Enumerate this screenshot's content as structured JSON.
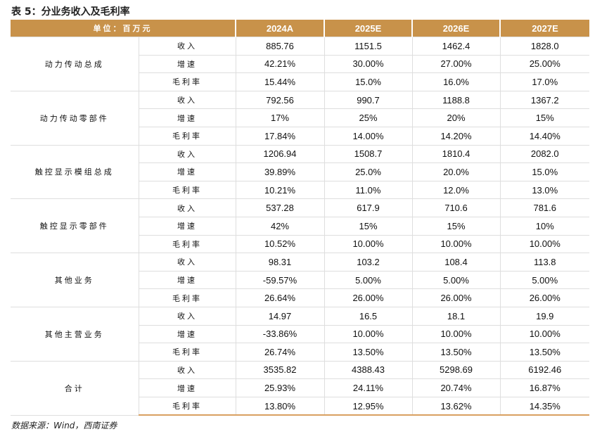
{
  "title": "表 5：分业务收入及毛利率",
  "header": {
    "unit_label": "单位：百万元",
    "years": [
      "2024A",
      "2025E",
      "2026E",
      "2027E"
    ]
  },
  "colors": {
    "header_bg": "#c8924a",
    "bottom_rule": "#d9a060"
  },
  "groups": [
    {
      "name": "动力传动总成",
      "rows": [
        {
          "metric": "收入",
          "values": [
            "885.76",
            "1151.5",
            "1462.4",
            "1828.0"
          ]
        },
        {
          "metric": "增速",
          "values": [
            "42.21%",
            "30.00%",
            "27.00%",
            "25.00%"
          ]
        },
        {
          "metric": "毛利率",
          "values": [
            "15.44%",
            "15.0%",
            "16.0%",
            "17.0%"
          ]
        }
      ]
    },
    {
      "name": "动力传动零部件",
      "rows": [
        {
          "metric": "收入",
          "values": [
            "792.56",
            "990.7",
            "1188.8",
            "1367.2"
          ]
        },
        {
          "metric": "增速",
          "values": [
            "17%",
            "25%",
            "20%",
            "15%"
          ]
        },
        {
          "metric": "毛利率",
          "values": [
            "17.84%",
            "14.00%",
            "14.20%",
            "14.40%"
          ]
        }
      ]
    },
    {
      "name": "触控显示模组总成",
      "rows": [
        {
          "metric": "收入",
          "values": [
            "1206.94",
            "1508.7",
            "1810.4",
            "2082.0"
          ]
        },
        {
          "metric": "增速",
          "values": [
            "39.89%",
            "25.0%",
            "20.0%",
            "15.0%"
          ]
        },
        {
          "metric": "毛利率",
          "values": [
            "10.21%",
            "11.0%",
            "12.0%",
            "13.0%"
          ]
        }
      ]
    },
    {
      "name": "触控显示零部件",
      "rows": [
        {
          "metric": "收入",
          "values": [
            "537.28",
            "617.9",
            "710.6",
            "781.6"
          ]
        },
        {
          "metric": "增速",
          "values": [
            "42%",
            "15%",
            "15%",
            "10%"
          ]
        },
        {
          "metric": "毛利率",
          "values": [
            "10.52%",
            "10.00%",
            "10.00%",
            "10.00%"
          ]
        }
      ]
    },
    {
      "name": "其他业务",
      "rows": [
        {
          "metric": "收入",
          "values": [
            "98.31",
            "103.2",
            "108.4",
            "113.8"
          ]
        },
        {
          "metric": "增速",
          "values": [
            "-59.57%",
            "5.00%",
            "5.00%",
            "5.00%"
          ]
        },
        {
          "metric": "毛利率",
          "values": [
            "26.64%",
            "26.00%",
            "26.00%",
            "26.00%"
          ]
        }
      ]
    },
    {
      "name": "其他主营业务",
      "rows": [
        {
          "metric": "收入",
          "values": [
            "14.97",
            "16.5",
            "18.1",
            "19.9"
          ]
        },
        {
          "metric": "增速",
          "values": [
            "-33.86%",
            "10.00%",
            "10.00%",
            "10.00%"
          ]
        },
        {
          "metric": "毛利率",
          "values": [
            "26.74%",
            "13.50%",
            "13.50%",
            "13.50%"
          ]
        }
      ]
    },
    {
      "name": "合计",
      "rows": [
        {
          "metric": "收入",
          "values": [
            "3535.82",
            "4388.43",
            "5298.69",
            "6192.46"
          ]
        },
        {
          "metric": "增速",
          "values": [
            "25.93%",
            "24.11%",
            "20.74%",
            "16.87%"
          ]
        },
        {
          "metric": "毛利率",
          "values": [
            "13.80%",
            "12.95%",
            "13.62%",
            "14.35%"
          ]
        }
      ]
    }
  ],
  "source": "数据来源：Wind，西南证券"
}
